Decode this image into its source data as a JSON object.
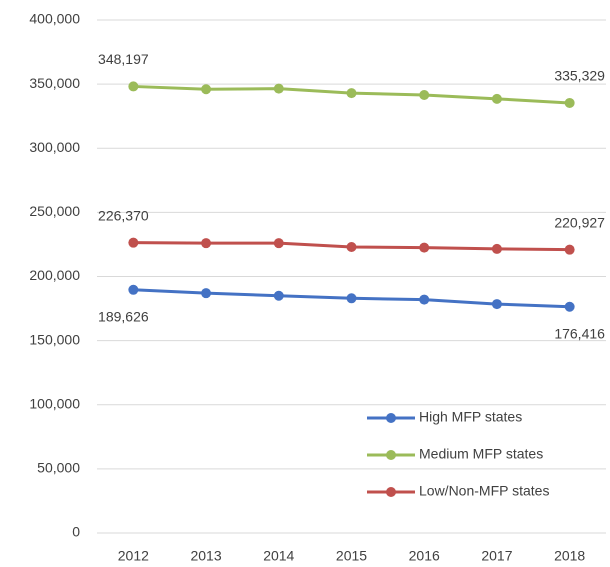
{
  "chart_data": {
    "type": "line",
    "categories": [
      "2012",
      "2013",
      "2014",
      "2015",
      "2016",
      "2017",
      "2018"
    ],
    "series": [
      {
        "name": "High MFP states",
        "color": "#4472c4",
        "values": [
          189626,
          187000,
          185000,
          183000,
          182000,
          178500,
          176416
        ],
        "value_labels": [
          "189,626",
          null,
          null,
          null,
          null,
          null,
          "176,416"
        ]
      },
      {
        "name": "Medium MFP states",
        "color": "#9bbb59",
        "values": [
          348197,
          346000,
          346500,
          343000,
          341500,
          338500,
          335329
        ],
        "value_labels": [
          "348,197",
          null,
          null,
          null,
          null,
          null,
          "335,329"
        ]
      },
      {
        "name": "Low/Non-MFP states",
        "color": "#c0504d",
        "values": [
          226370,
          226000,
          226000,
          223000,
          222500,
          221500,
          220927
        ],
        "value_labels": [
          "226,370",
          null,
          null,
          null,
          null,
          null,
          "220,927"
        ]
      }
    ],
    "ylim": [
      0,
      400000
    ],
    "yticks": [
      {
        "value": 0,
        "label": "0"
      },
      {
        "value": 50000,
        "label": "50,000"
      },
      {
        "value": 100000,
        "label": "100,000"
      },
      {
        "value": 150000,
        "label": "150,000"
      },
      {
        "value": 200000,
        "label": "200,000"
      },
      {
        "value": 250000,
        "label": "250,000"
      },
      {
        "value": 300000,
        "label": "300,000"
      },
      {
        "value": 350000,
        "label": "350,000"
      },
      {
        "value": 400000,
        "label": "400,000"
      }
    ],
    "grid": true
  }
}
